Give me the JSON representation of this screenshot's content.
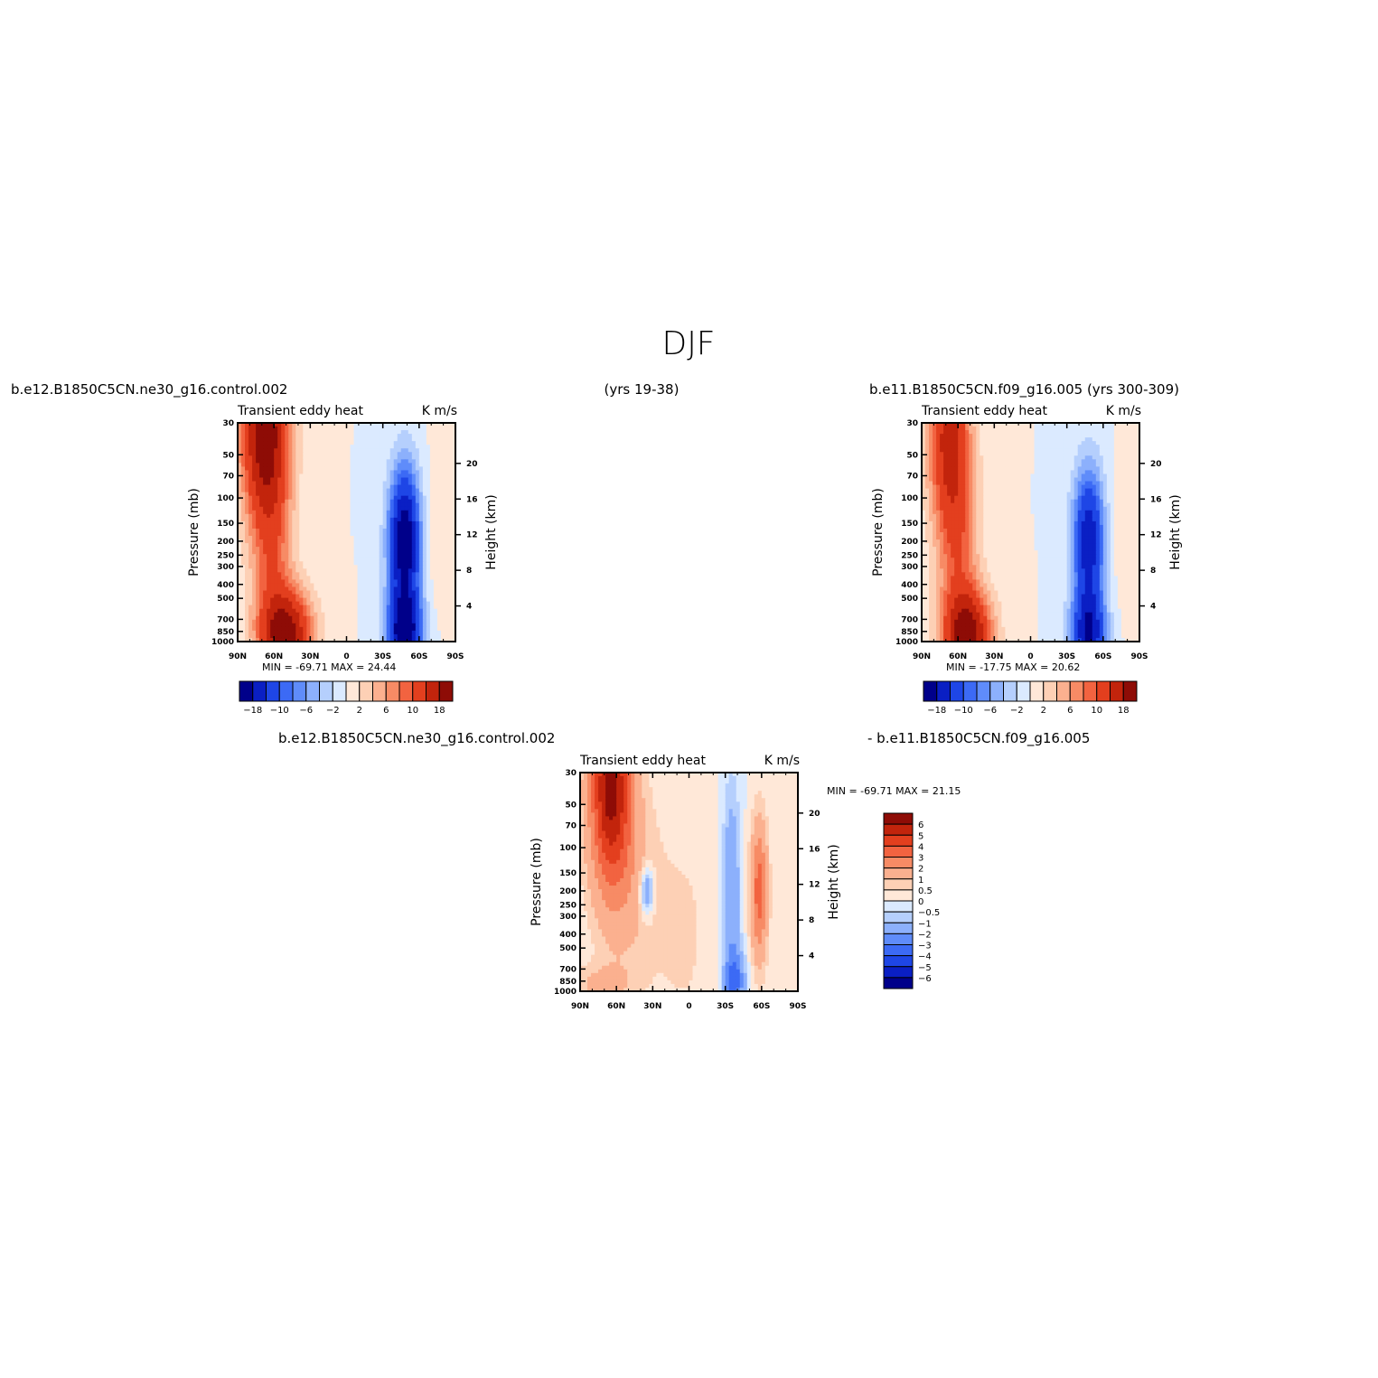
{
  "page": {
    "title": "DJF"
  },
  "labels": {
    "case1": "b.e12.B1850C5CN.ne30_g16.control.002",
    "years1": "(yrs 19-38)",
    "case2": "b.e11.B1850C5CN.f09_g16.005 (yrs 300-309)",
    "diff_left": "b.e12.B1850C5CN.ne30_g16.control.002",
    "diff_right": "- b.e11.B1850C5CN.f09_g16.005"
  },
  "colors": {
    "abs_levels": [
      "#00008a",
      "#0a1fc4",
      "#1e46e6",
      "#3c6af5",
      "#5f8cfa",
      "#8cb0fc",
      "#b5cffd",
      "#dbeaff",
      "#ffe8d8",
      "#fdd0b5",
      "#fbb08f",
      "#f78b65",
      "#f26340",
      "#e33f1e",
      "#c2240c",
      "#8e0c06"
    ],
    "diff_levels": [
      "#00008a",
      "#0a1fc4",
      "#1e46e6",
      "#3c6af5",
      "#5f8cfa",
      "#8cb0fc",
      "#b5cffd",
      "#dbeaff",
      "#ffe8d8",
      "#fdd0b5",
      "#fbb08f",
      "#f78b65",
      "#f26340",
      "#e33f1e",
      "#c2240c",
      "#8e0c06"
    ]
  },
  "chart_data": [
    {
      "type": "heatmap",
      "panel": "case1",
      "title": "Transient eddy heat",
      "units": "K m/s",
      "ylabel": "Pressure (mb)",
      "ylabel_right": "Height (km)",
      "x_ticks": [
        "90N",
        "60N",
        "30N",
        "0",
        "30S",
        "60S",
        "90S"
      ],
      "x_range": [
        90,
        -90
      ],
      "y_ticks": [
        "30",
        "50",
        "70",
        "100",
        "150",
        "200",
        "250",
        "300",
        "400",
        "500",
        "700",
        "850",
        "1000"
      ],
      "y_range": [
        1000,
        30
      ],
      "y_scale": "log",
      "height_ticks": [
        "4",
        "8",
        "12",
        "16",
        "20"
      ],
      "min_label": "MIN = -69.71",
      "max_label": "MAX = 24.44",
      "colorbar_ticks": [
        "-18",
        "-10",
        "-6",
        "-2",
        "2",
        "6",
        "10",
        "18"
      ],
      "contour_levels": [
        -18,
        -14,
        -10,
        -8,
        -6,
        -4,
        -2,
        0,
        2,
        4,
        6,
        8,
        10,
        14,
        18
      ],
      "features": [
        {
          "lat": 68,
          "p": 30,
          "value": 20,
          "lat_width": 14,
          "p_width_decades": 0.45
        },
        {
          "lat": 62,
          "p": 200,
          "value": 8,
          "lat_width": 12,
          "p_width_decades": 0.5
        },
        {
          "lat": 50,
          "p": 900,
          "value": 20,
          "lat_width": 15,
          "p_width_decades": 0.22
        },
        {
          "lat": -48,
          "p": 200,
          "value": -22,
          "lat_width": 9,
          "p_width_decades": 0.35
        },
        {
          "lat": -48,
          "p": 900,
          "value": -20,
          "lat_width": 10,
          "p_width_decades": 0.2
        },
        {
          "lat": -75,
          "p": 180,
          "value": 1.5,
          "lat_width": 10,
          "p_width_decades": 0.4
        }
      ]
    },
    {
      "type": "heatmap",
      "panel": "case2",
      "title": "Transient eddy heat",
      "units": "K m/s",
      "ylabel": "Pressure (mb)",
      "ylabel_right": "Height (km)",
      "x_ticks": [
        "90N",
        "60N",
        "30N",
        "0",
        "30S",
        "60S",
        "90S"
      ],
      "x_range": [
        90,
        -90
      ],
      "y_ticks": [
        "30",
        "50",
        "70",
        "100",
        "150",
        "200",
        "250",
        "300",
        "400",
        "500",
        "700",
        "850",
        "1000"
      ],
      "y_range": [
        1000,
        30
      ],
      "y_scale": "log",
      "height_ticks": [
        "4",
        "8",
        "12",
        "16",
        "20"
      ],
      "min_label": "MIN = -17.75",
      "max_label": "MAX = 20.62",
      "colorbar_ticks": [
        "-18",
        "-10",
        "-6",
        "-2",
        "2",
        "6",
        "10",
        "18"
      ],
      "contour_levels": [
        -18,
        -14,
        -10,
        -8,
        -6,
        -4,
        -2,
        0,
        2,
        4,
        6,
        8,
        10,
        14,
        18
      ],
      "features": [
        {
          "lat": 68,
          "p": 35,
          "value": 14,
          "lat_width": 12,
          "p_width_decades": 0.45
        },
        {
          "lat": 60,
          "p": 200,
          "value": 8,
          "lat_width": 12,
          "p_width_decades": 0.5
        },
        {
          "lat": 52,
          "p": 900,
          "value": 19,
          "lat_width": 14,
          "p_width_decades": 0.22
        },
        {
          "lat": -48,
          "p": 200,
          "value": -17,
          "lat_width": 9,
          "p_width_decades": 0.35
        },
        {
          "lat": -48,
          "p": 900,
          "value": -16,
          "lat_width": 10,
          "p_width_decades": 0.2
        },
        {
          "lat": -78,
          "p": 200,
          "value": 1.2,
          "lat_width": 10,
          "p_width_decades": 0.4
        }
      ]
    },
    {
      "type": "heatmap",
      "panel": "difference",
      "title": "Transient eddy heat",
      "units": "K m/s",
      "ylabel": "Pressure (mb)",
      "ylabel_right": "Height (km)",
      "x_ticks": [
        "90N",
        "60N",
        "30N",
        "0",
        "30S",
        "60S",
        "90S"
      ],
      "x_range": [
        90,
        -90
      ],
      "y_ticks": [
        "30",
        "50",
        "70",
        "100",
        "150",
        "200",
        "250",
        "300",
        "400",
        "500",
        "700",
        "850",
        "1000"
      ],
      "y_range": [
        1000,
        30
      ],
      "y_scale": "log",
      "height_ticks": [
        "4",
        "8",
        "12",
        "16",
        "20"
      ],
      "min_label": "MIN = -69.71",
      "max_label": "MAX = 21.15",
      "colorbar_ticks": [
        "6",
        "5",
        "4",
        "3",
        "2",
        "1",
        "0.5",
        "0",
        "-0.5",
        "-1",
        "-2",
        "-3",
        "-4",
        "-5",
        "-6"
      ],
      "contour_levels": [
        -6,
        -5,
        -4,
        -3,
        -2,
        -1,
        -0.5,
        0,
        0.5,
        1,
        2,
        3,
        4,
        5,
        6
      ],
      "features": [
        {
          "lat": 65,
          "p": 35,
          "value": 6,
          "lat_width": 12,
          "p_width_decades": 0.45
        },
        {
          "lat": 55,
          "p": 150,
          "value": 1.5,
          "lat_width": 18,
          "p_width_decades": 0.5
        },
        {
          "lat": 35,
          "p": 200,
          "value": -2.5,
          "lat_width": 4,
          "p_width_decades": 0.12
        },
        {
          "lat": -35,
          "p": 200,
          "value": -2,
          "lat_width": 5,
          "p_width_decades": 0.5
        },
        {
          "lat": -58,
          "p": 200,
          "value": 3.5,
          "lat_width": 5,
          "p_width_decades": 0.35
        },
        {
          "lat": -38,
          "p": 850,
          "value": -3,
          "lat_width": 6,
          "p_width_decades": 0.15
        },
        {
          "lat": 75,
          "p": 900,
          "value": 1,
          "lat_width": 20,
          "p_width_decades": 0.1
        },
        {
          "lat": 5,
          "p": 400,
          "value": 0.6,
          "lat_width": 20,
          "p_width_decades": 0.6
        }
      ]
    }
  ]
}
